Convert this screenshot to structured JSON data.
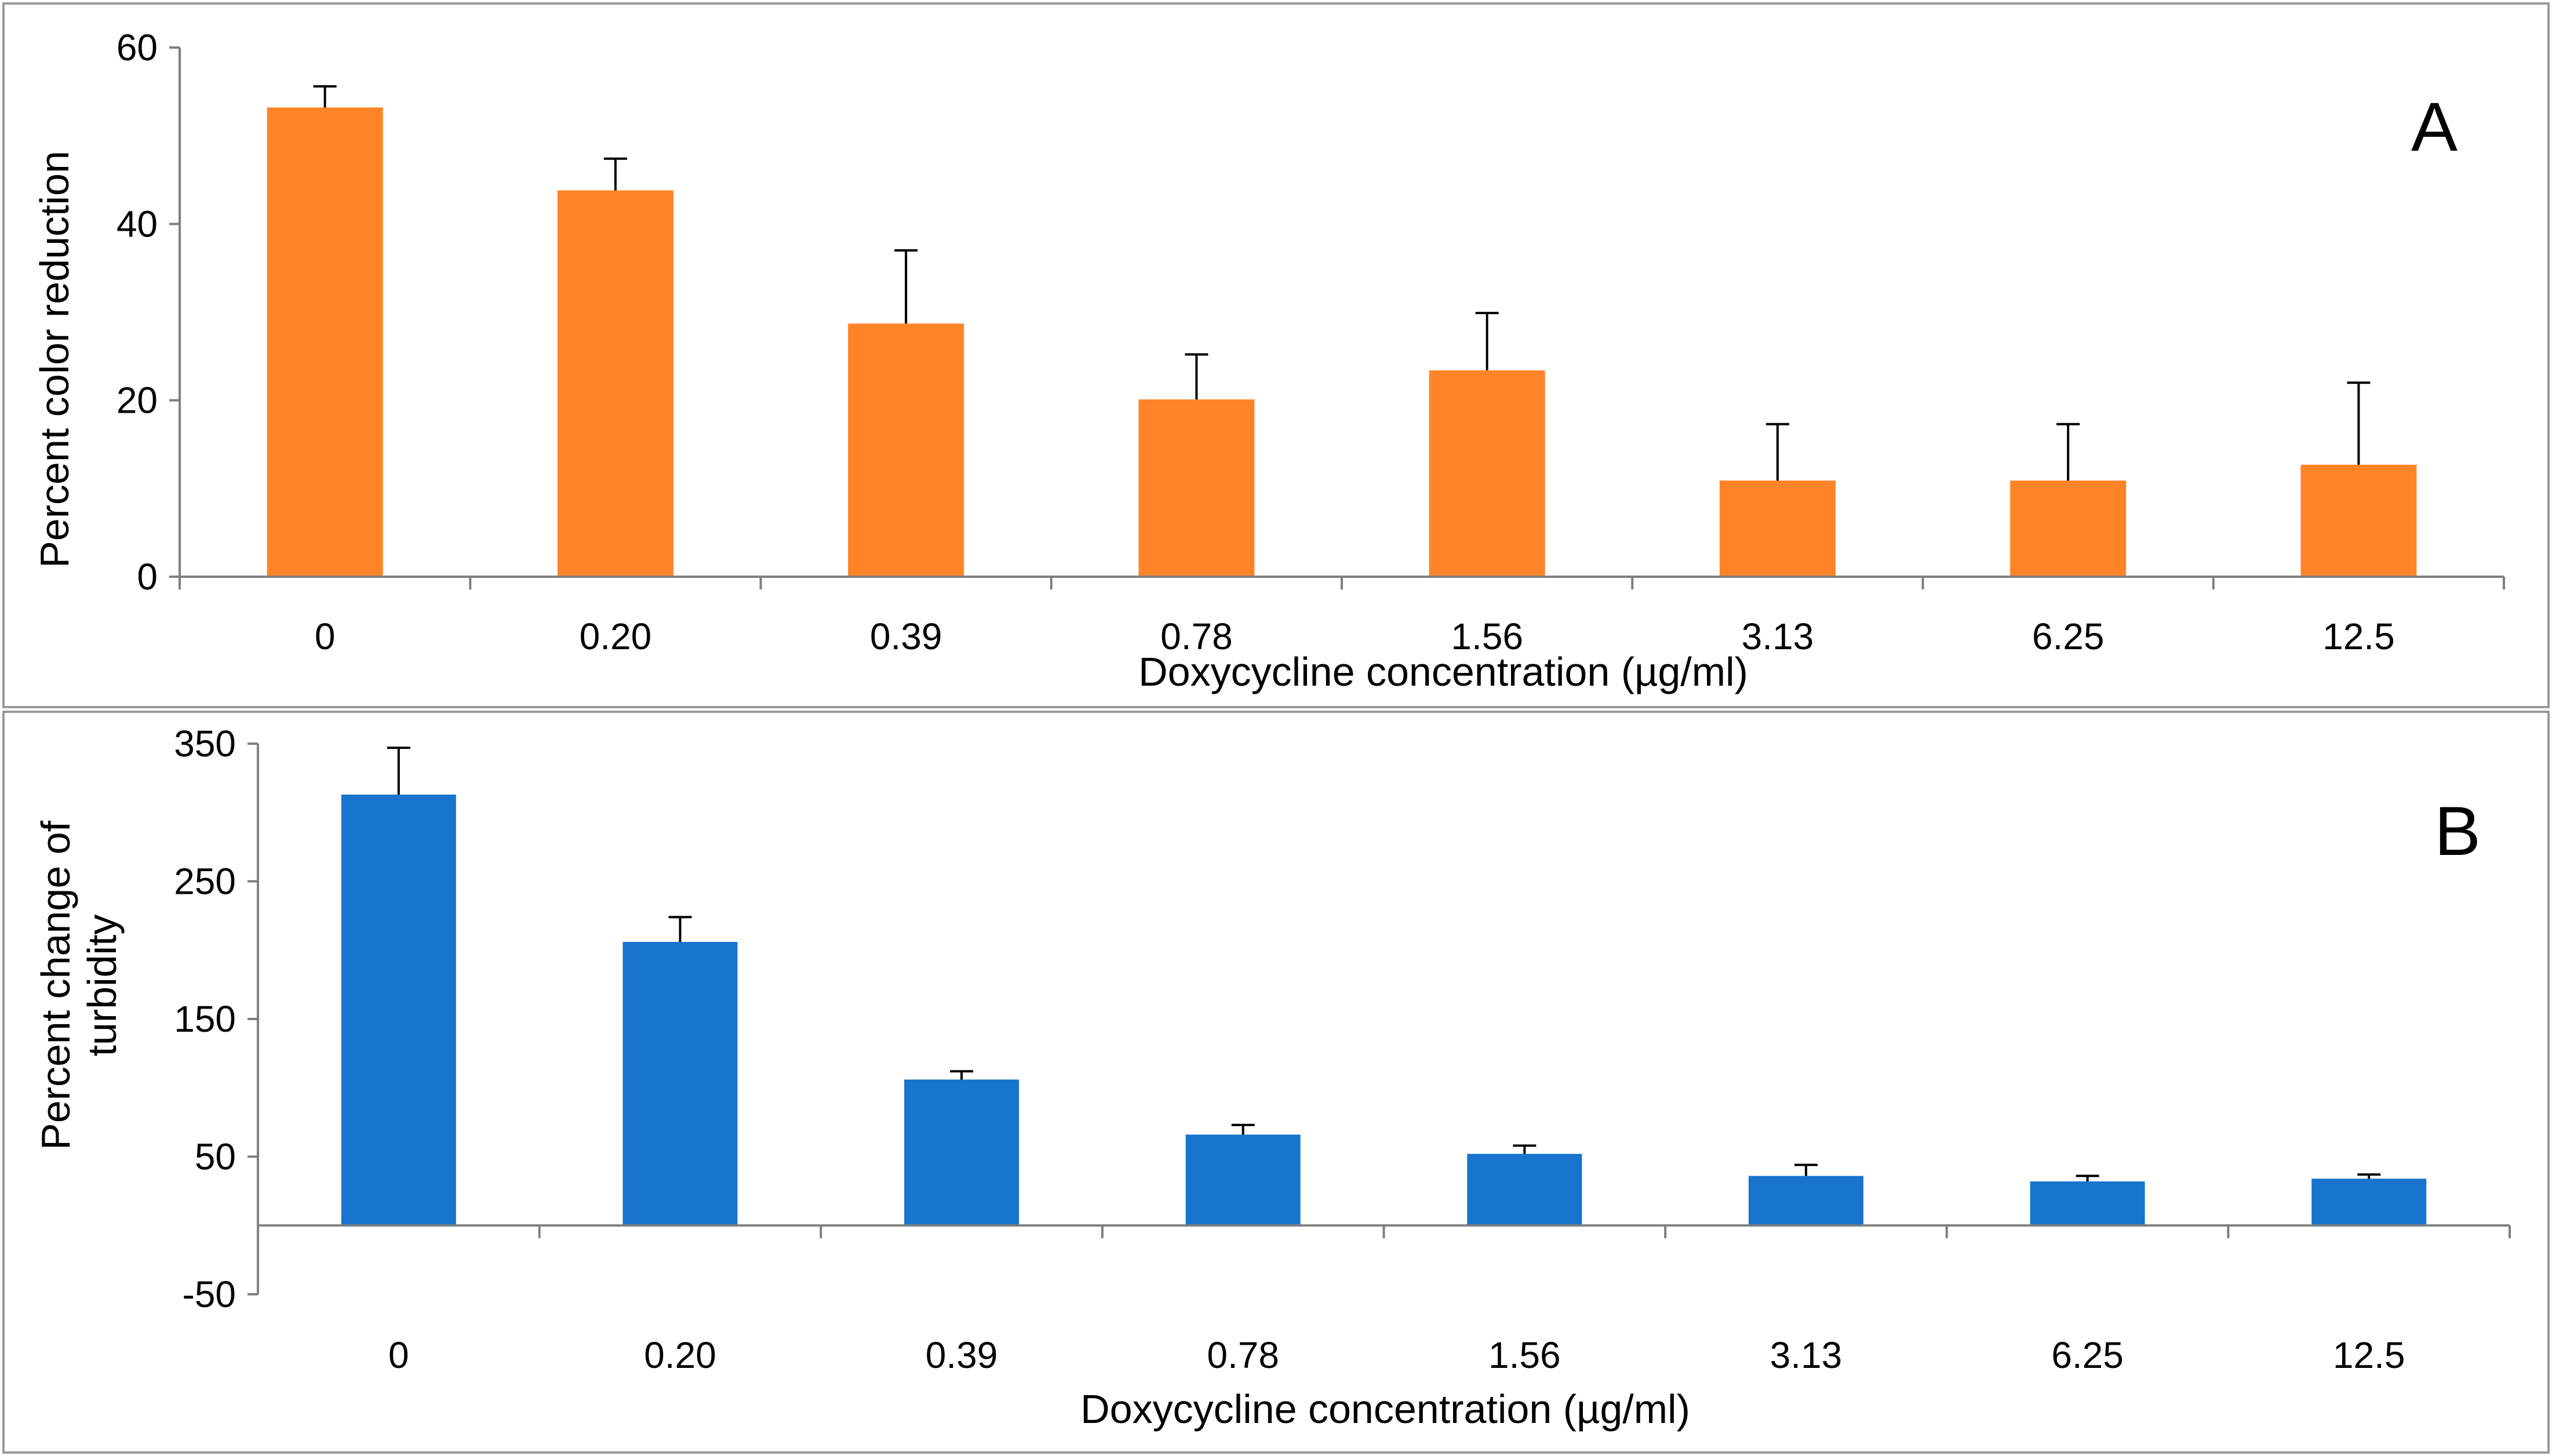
{
  "chart_data": [
    {
      "type": "bar",
      "panel_label": "A",
      "title": "",
      "xlabel": "Doxycycline  concentration (µg/ml)",
      "ylabel": "Percent color reduction",
      "ylim": [
        0,
        60
      ],
      "yticks": [
        0,
        20,
        40,
        60
      ],
      "categories": [
        "0",
        "0.20",
        "0.39",
        "0.78",
        "1.56",
        "3.13",
        "6.25",
        "12.5"
      ],
      "series": [
        {
          "values": [
            53.2,
            43.8,
            28.7,
            20.1,
            23.4,
            10.9,
            10.9,
            12.7
          ],
          "error_plus": [
            2.4,
            3.6,
            8.3,
            5.1,
            6.5,
            6.4,
            6.4,
            9.3
          ],
          "color": "#FF8427"
        }
      ],
      "grid": false,
      "legend": "none"
    },
    {
      "type": "bar",
      "panel_label": "B",
      "title": "",
      "xlabel": "Doxycycline concentration (µg/ml)",
      "ylabel": "Percent change of turbidity",
      "ylim": [
        -50,
        350
      ],
      "yticks": [
        -50,
        50,
        150,
        250,
        350
      ],
      "categories": [
        "0",
        "0.20",
        "0.39",
        "0.78",
        "1.56",
        "3.13",
        "6.25",
        "12.5"
      ],
      "series": [
        {
          "values": [
            313,
            206,
            106,
            66,
            52,
            36,
            32,
            34
          ],
          "error_plus": [
            34,
            18,
            6,
            7,
            6,
            8,
            4,
            3
          ],
          "color": "#1874CD"
        }
      ],
      "grid": false,
      "legend": "none"
    }
  ]
}
